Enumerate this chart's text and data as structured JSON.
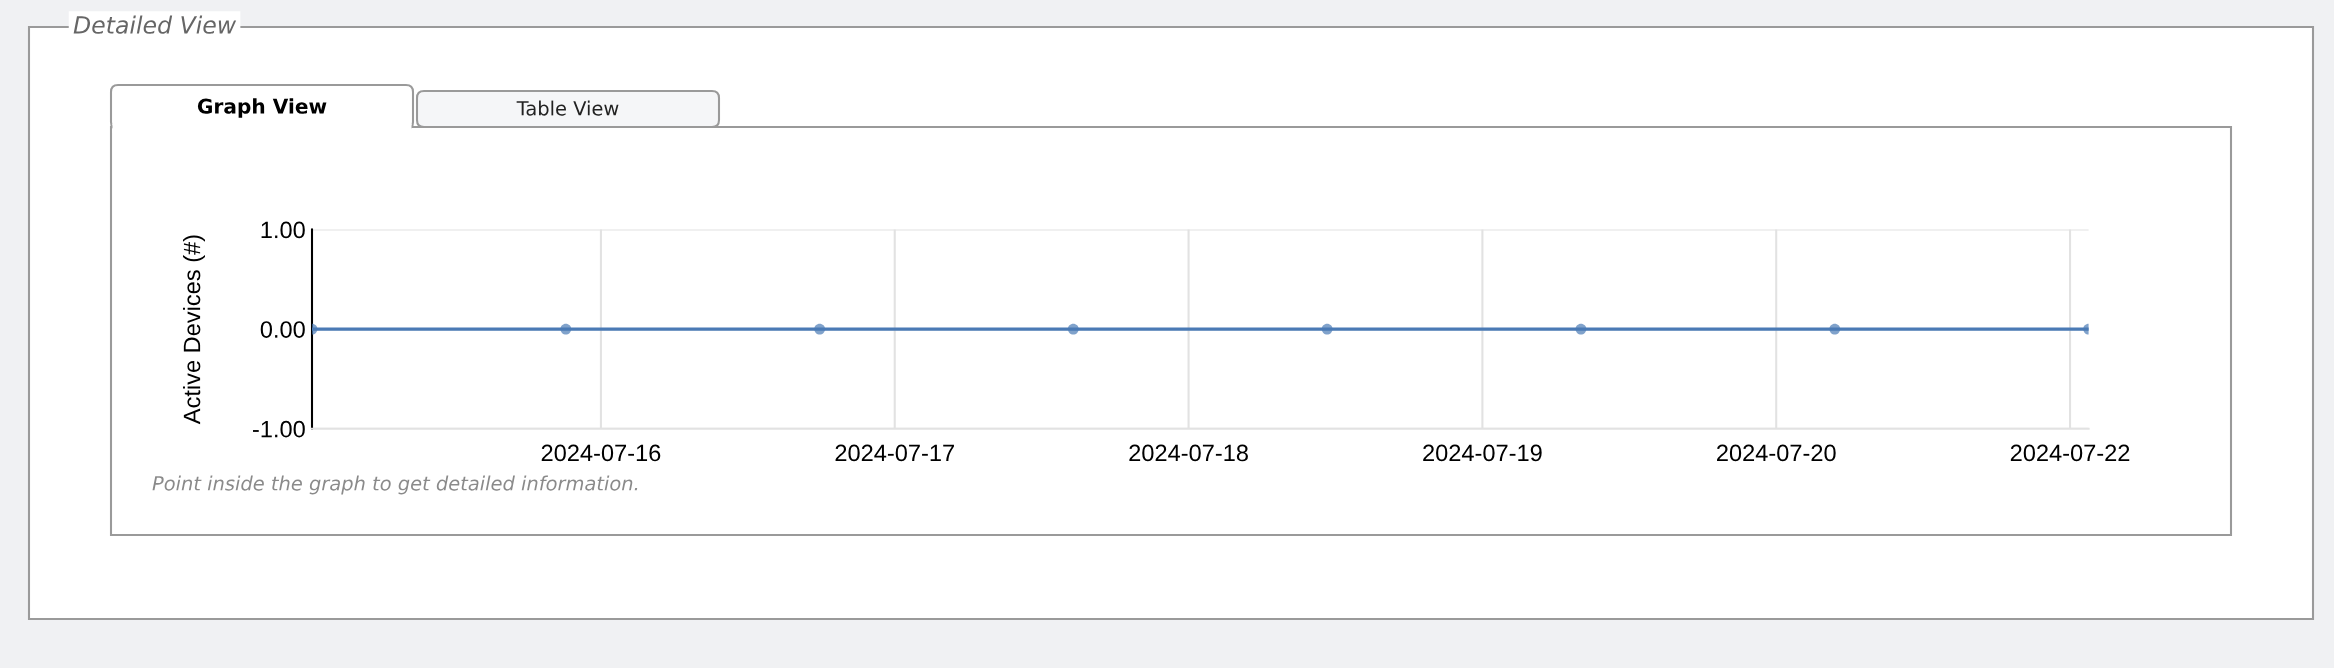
{
  "chart_data": {
    "type": "line",
    "title": "Detailed View",
    "ylabel": "Active Devices (#)",
    "annotations": [
      "Graph View",
      "Table View",
      "Point inside the graph to get detailed information."
    ],
    "x": [
      "2024-07-15T00:24",
      "2024-07-15T21:08",
      "2024-07-16T17:52",
      "2024-07-17T14:35",
      "2024-07-18T11:19",
      "2024-07-19T08:03",
      "2024-07-20T04:47",
      "2024-07-21T01:31"
    ],
    "series": [
      {
        "color": "#4a7ab5",
        "values": [
          0,
          0,
          0,
          0,
          0,
          0,
          0,
          0
        ]
      }
    ],
    "xlim": [
      "2024-07-15T00:24",
      "2024-07-21T01:31"
    ],
    "xticks": [
      {
        "value": "2024-07-16",
        "label": "2024-07-16"
      },
      {
        "value": "2024-07-17",
        "label": "2024-07-17"
      },
      {
        "value": "2024-07-18",
        "label": "2024-07-18"
      },
      {
        "value": "2024-07-19",
        "label": "2024-07-19"
      },
      {
        "value": "2024-07-20",
        "label": "2024-07-20"
      },
      {
        "value": "2024-07-21",
        "label": "2024-07-22"
      }
    ],
    "ylim": [
      -1,
      1
    ],
    "yticks": [
      {
        "value": -1,
        "label": "-1.00"
      },
      {
        "value": 0,
        "label": "0.00"
      },
      {
        "value": 1,
        "label": "1.00"
      }
    ],
    "grid": true,
    "marker": "circle",
    "line_style": "solid"
  }
}
